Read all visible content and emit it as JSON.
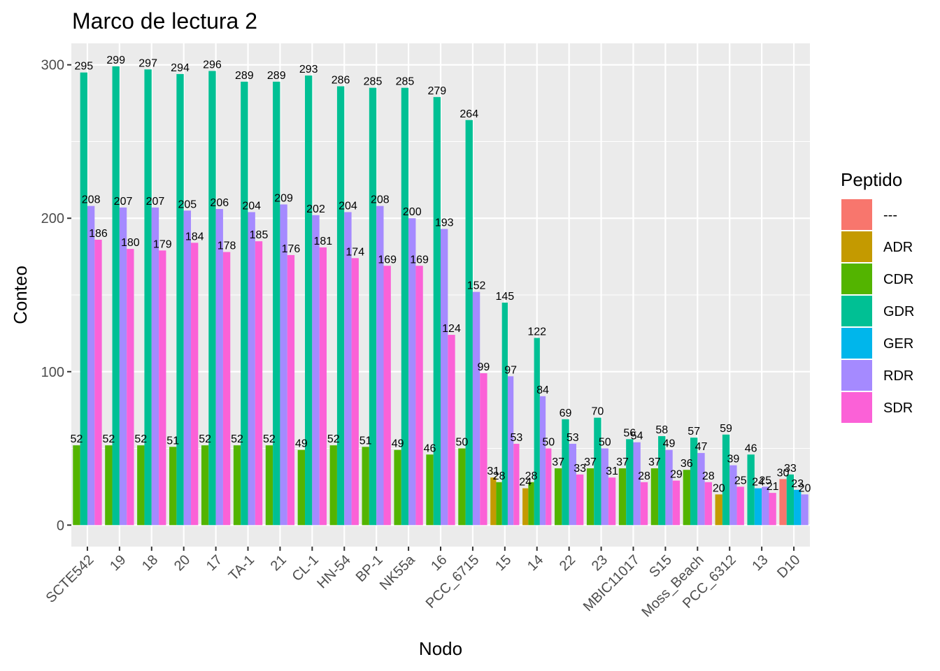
{
  "chart_data": {
    "type": "bar",
    "title": "Marco de lectura 2",
    "xlabel": "Nodo",
    "ylabel": "Conteo",
    "ylim": [
      -14,
      314
    ],
    "yticks": [
      0,
      100,
      200,
      300
    ],
    "grid": true,
    "legend_position": "right",
    "legend_title": "Peptido",
    "categories": [
      "SCTE542",
      "19",
      "18",
      "20",
      "17",
      "TA-1",
      "21",
      "CL-1",
      "HN-54",
      "BP-1",
      "NK55a",
      "16",
      "PCC_6715",
      "15",
      "14",
      "22",
      "23",
      "MBIC11017",
      "S15",
      "Moss_Beach",
      "PCC_6312",
      "13",
      "D10"
    ],
    "series": [
      {
        "name": "---",
        "color": "#F8766D",
        "values": [
          null,
          null,
          null,
          null,
          null,
          null,
          null,
          null,
          null,
          null,
          null,
          null,
          null,
          null,
          null,
          null,
          null,
          null,
          null,
          null,
          null,
          null,
          30
        ]
      },
      {
        "name": "ADR",
        "color": "#C49A00",
        "values": [
          null,
          null,
          null,
          null,
          null,
          null,
          null,
          null,
          null,
          null,
          null,
          null,
          null,
          31,
          24,
          null,
          null,
          null,
          null,
          null,
          20,
          null,
          null
        ]
      },
      {
        "name": "CDR",
        "color": "#53B400",
        "values": [
          52,
          52,
          52,
          51,
          52,
          52,
          52,
          49,
          52,
          51,
          49,
          46,
          50,
          28,
          28,
          37,
          37,
          37,
          37,
          36,
          null,
          null,
          null
        ]
      },
      {
        "name": "GDR",
        "color": "#00C094",
        "values": [
          295,
          299,
          297,
          294,
          296,
          289,
          289,
          293,
          286,
          285,
          285,
          279,
          264,
          145,
          122,
          69,
          70,
          56,
          58,
          57,
          59,
          46,
          33
        ]
      },
      {
        "name": "GER",
        "color": "#00B6EB",
        "values": [
          null,
          null,
          null,
          null,
          null,
          null,
          null,
          null,
          null,
          null,
          null,
          null,
          null,
          null,
          null,
          null,
          null,
          null,
          null,
          null,
          null,
          24,
          23
        ]
      },
      {
        "name": "RDR",
        "color": "#A58AFF",
        "values": [
          208,
          207,
          207,
          205,
          206,
          204,
          209,
          202,
          204,
          208,
          200,
          193,
          152,
          97,
          84,
          53,
          50,
          54,
          49,
          47,
          39,
          25,
          20
        ]
      },
      {
        "name": "SDR",
        "color": "#FB61D7",
        "values": [
          186,
          180,
          179,
          184,
          178,
          185,
          176,
          181,
          174,
          169,
          169,
          124,
          99,
          53,
          50,
          33,
          31,
          28,
          29,
          28,
          25,
          21,
          null
        ]
      }
    ]
  }
}
